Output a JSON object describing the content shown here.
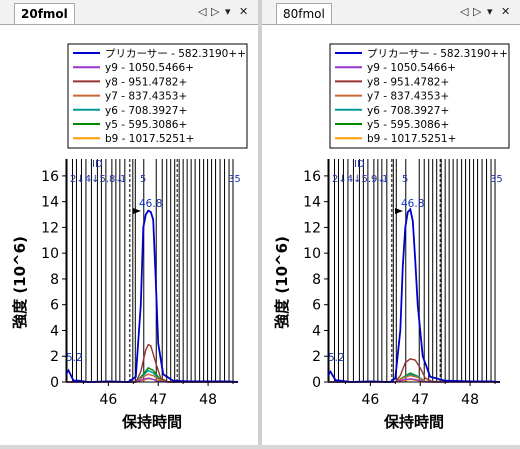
{
  "panes": [
    {
      "tab_label": "20fmol",
      "tab_active": true,
      "chart_data": {
        "type": "line",
        "xlabel": "保持時間",
        "ylabel": "強度 (10^6)",
        "xticks": [
          "46",
          "47",
          "48"
        ],
        "yticks": [
          "0",
          "2",
          "4",
          "6",
          "8",
          "10",
          "12",
          "14",
          "16"
        ],
        "xlim": [
          45.15,
          48.6
        ],
        "ylim": [
          0,
          17
        ],
        "peak_label": "46.8",
        "edge_label": "5.2",
        "id_label": "ID",
        "id_row_left": "2↓4↓5.8↓",
        "id_row_mid": "1",
        "id_row_mid2": "5",
        "id_row_right": "35",
        "legend": [
          {
            "label": "プリカーサー - 582.3190++",
            "color": "#0000cc"
          },
          {
            "label": "y9 - 1050.5466+",
            "color": "#9933cc"
          },
          {
            "label": "y8 - 951.4782+",
            "color": "#993333"
          },
          {
            "label": "y7 - 837.4353+",
            "color": "#cc6633"
          },
          {
            "label": "y6 - 708.3927+",
            "color": "#009999"
          },
          {
            "label": "y5 - 595.3086+",
            "color": "#008800"
          },
          {
            "label": "b9 - 1017.5251+",
            "color": "#ff9900"
          }
        ],
        "series": [
          {
            "name": "プリカーサー - 582.3190++",
            "color": "#0000cc",
            "x": [
              45.15,
              45.2,
              45.3,
              45.4,
              45.6,
              46.0,
              46.4,
              46.55,
              46.65,
              46.7,
              46.75,
              46.8,
              46.85,
              46.9,
              46.95,
              47.0,
              47.1,
              47.3,
              47.6,
              48.0,
              48.4,
              48.6
            ],
            "y": [
              0.6,
              0.9,
              0.1,
              0.1,
              0.0,
              0.05,
              0.0,
              0.4,
              6.0,
              12.0,
              13.0,
              13.3,
              13.2,
              12.6,
              8.0,
              3.0,
              0.6,
              0.1,
              0.05,
              0.05,
              0.05,
              0.0
            ]
          },
          {
            "name": "y9 - 1050.5466+",
            "color": "#9933cc",
            "x": [
              45.15,
              46.55,
              46.7,
              46.8,
              46.9,
              47.0,
              47.2,
              48.6
            ],
            "y": [
              0,
              0,
              0.2,
              0.3,
              0.2,
              0.05,
              0,
              0
            ]
          },
          {
            "name": "y8 - 951.4782+",
            "color": "#993333",
            "x": [
              45.15,
              46.55,
              46.65,
              46.75,
              46.8,
              46.85,
              46.95,
              47.05,
              47.2,
              48.6
            ],
            "y": [
              0,
              0,
              0.8,
              2.5,
              2.9,
              2.8,
              1.5,
              0.3,
              0,
              0
            ]
          },
          {
            "name": "y7 - 837.4353+",
            "color": "#cc6633",
            "x": [
              45.15,
              46.55,
              46.7,
              46.8,
              46.9,
              47.05,
              47.2,
              48.6
            ],
            "y": [
              0,
              0,
              0.4,
              0.6,
              0.5,
              0.1,
              0,
              0
            ]
          },
          {
            "name": "y6 - 708.3927+",
            "color": "#009999",
            "x": [
              45.15,
              46.55,
              46.7,
              46.8,
              46.9,
              47.05,
              47.2,
              48.6
            ],
            "y": [
              0,
              0,
              0.5,
              0.9,
              0.7,
              0.1,
              0,
              0
            ]
          },
          {
            "name": "y5 - 595.3086+",
            "color": "#008800",
            "x": [
              45.15,
              46.55,
              46.7,
              46.8,
              46.9,
              47.05,
              47.2,
              48.6
            ],
            "y": [
              0,
              0,
              0.6,
              1.1,
              0.9,
              0.15,
              0,
              0
            ]
          },
          {
            "name": "b9 - 1017.5251+",
            "color": "#ff9900",
            "x": [
              45.15,
              46.55,
              46.7,
              46.8,
              46.9,
              47.05,
              47.2,
              48.6
            ],
            "y": [
              0,
              0,
              0.15,
              0.25,
              0.2,
              0.05,
              0,
              0
            ]
          }
        ],
        "vlines_x": [
          45.17,
          45.28,
          45.36,
          45.46,
          45.55,
          45.66,
          45.78,
          45.86,
          45.95,
          46.07,
          46.15,
          46.23,
          46.33,
          46.49,
          46.54,
          46.71,
          46.96,
          47.08,
          47.17,
          47.25,
          47.33,
          47.42,
          47.5,
          47.58,
          47.66,
          47.74,
          47.83,
          47.91,
          47.99,
          48.07,
          48.15,
          48.24,
          48.33,
          48.42,
          48.5
        ],
        "dashed_x": [
          46.43,
          47.38
        ]
      }
    },
    {
      "tab_label": "80fmol",
      "tab_active": false,
      "chart_data": {
        "type": "line",
        "xlabel": "保持時間",
        "ylabel": "強度 (10^6)",
        "xticks": [
          "46",
          "47",
          "48"
        ],
        "yticks": [
          "0",
          "2",
          "4",
          "6",
          "8",
          "10",
          "12",
          "14",
          "16"
        ],
        "xlim": [
          45.15,
          48.6
        ],
        "ylim": [
          0,
          17
        ],
        "peak_label": "46.8",
        "edge_label": "5.2",
        "id_label": "ID",
        "id_row_left": "2↓4↓5.9↓",
        "id_row_mid": "1",
        "id_row_mid2": "5",
        "id_row_right": "35",
        "legend": [
          {
            "label": "プリカーサー - 582.3190++",
            "color": "#0000cc"
          },
          {
            "label": "y9 - 1050.5466+",
            "color": "#9933cc"
          },
          {
            "label": "y8 - 951.4782+",
            "color": "#993333"
          },
          {
            "label": "y7 - 837.4353+",
            "color": "#cc6633"
          },
          {
            "label": "y6 - 708.3927+",
            "color": "#009999"
          },
          {
            "label": "y5 - 595.3086+",
            "color": "#008800"
          },
          {
            "label": "b9 - 1017.5251+",
            "color": "#ff9900"
          }
        ],
        "series": [
          {
            "name": "プリカーサー - 582.3190++",
            "color": "#0000cc",
            "x": [
              45.15,
              45.2,
              45.3,
              45.4,
              45.6,
              46.0,
              46.4,
              46.5,
              46.6,
              46.65,
              46.7,
              46.75,
              46.8,
              46.85,
              46.9,
              46.95,
              47.05,
              47.2,
              47.5,
              48.0,
              48.4,
              48.6
            ],
            "y": [
              0.5,
              0.8,
              0.15,
              0.1,
              0.0,
              0.05,
              0.0,
              0.3,
              4.0,
              9.0,
              12.0,
              13.2,
              13.4,
              12.5,
              9.5,
              6.0,
              2.0,
              0.4,
              0.1,
              0.05,
              0.05,
              0.0
            ]
          },
          {
            "name": "y9 - 1050.5466+",
            "color": "#9933cc",
            "x": [
              45.15,
              46.5,
              46.65,
              46.8,
              46.95,
              47.1,
              48.6
            ],
            "y": [
              0,
              0,
              0.15,
              0.25,
              0.15,
              0,
              0
            ]
          },
          {
            "name": "y8 - 951.4782+",
            "color": "#993333",
            "x": [
              45.15,
              46.5,
              46.6,
              46.7,
              46.8,
              46.9,
              47.0,
              47.1,
              47.25,
              48.6
            ],
            "y": [
              0,
              0,
              0.5,
              1.5,
              1.8,
              1.7,
              1.1,
              0.3,
              0,
              0
            ]
          },
          {
            "name": "y7 - 837.4353+",
            "color": "#cc6633",
            "x": [
              45.15,
              46.5,
              46.65,
              46.8,
              46.95,
              47.1,
              48.6
            ],
            "y": [
              0,
              0,
              0.3,
              0.5,
              0.35,
              0.05,
              0
            ]
          },
          {
            "name": "y6 - 708.3927+",
            "color": "#009999",
            "x": [
              45.15,
              46.5,
              46.65,
              46.8,
              46.95,
              47.1,
              48.6
            ],
            "y": [
              0,
              0,
              0.3,
              0.6,
              0.4,
              0.05,
              0
            ]
          },
          {
            "name": "y5 - 595.3086+",
            "color": "#008800",
            "x": [
              45.15,
              46.5,
              46.65,
              46.8,
              46.95,
              47.1,
              48.6
            ],
            "y": [
              0,
              0,
              0.35,
              0.7,
              0.45,
              0.05,
              0
            ]
          },
          {
            "name": "b9 - 1017.5251+",
            "color": "#ff9900",
            "x": [
              45.15,
              46.5,
              46.65,
              46.8,
              46.95,
              47.1,
              48.6
            ],
            "y": [
              0,
              0,
              0.1,
              0.2,
              0.12,
              0.02,
              0
            ]
          }
        ],
        "vlines_x": [
          45.17,
          45.28,
          45.36,
          45.46,
          45.55,
          45.66,
          45.78,
          45.86,
          45.95,
          46.07,
          46.15,
          46.23,
          46.33,
          46.46,
          46.52,
          46.71,
          46.98,
          47.08,
          47.17,
          47.25,
          47.33,
          47.42,
          47.5,
          47.58,
          47.66,
          47.74,
          47.83,
          47.91,
          47.99,
          48.07,
          48.15,
          48.24,
          48.33,
          48.42,
          48.5
        ],
        "dashed_x": [
          46.43,
          47.4
        ]
      }
    }
  ],
  "tab_controls": {
    "prev_glyph": "◁",
    "next_glyph": "▷",
    "menu_glyph": "▾",
    "close_glyph": "✕"
  }
}
